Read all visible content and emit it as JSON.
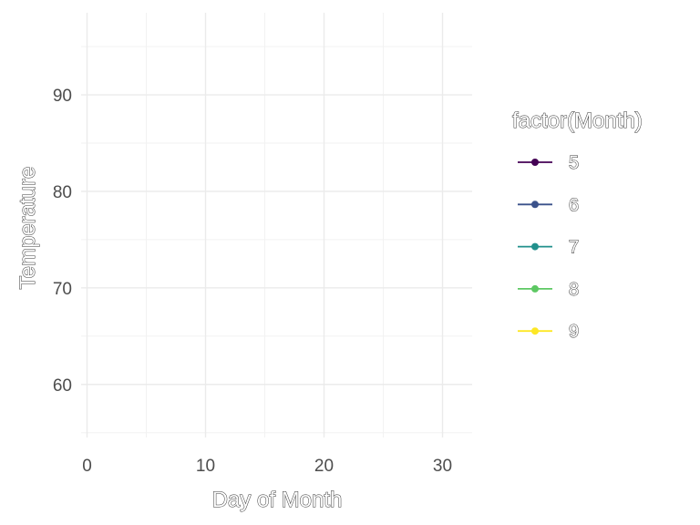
{
  "chart_data": {
    "type": "line",
    "title": "",
    "xlabel": "Day of Month",
    "ylabel": "Temperature",
    "xlim": [
      -0.5,
      32.5
    ],
    "ylim": [
      54.5,
      98.5
    ],
    "x_ticks": [
      0,
      10,
      20,
      30
    ],
    "y_ticks": [
      60,
      70,
      80,
      90
    ],
    "grid": true,
    "legend_position": "right",
    "legend_title": "factor(Month)",
    "series": [
      {
        "name": "5",
        "color": "#440154",
        "values": []
      },
      {
        "name": "6",
        "color": "#3B528B",
        "values": []
      },
      {
        "name": "7",
        "color": "#21908C",
        "values": []
      },
      {
        "name": "8",
        "color": "#5DC863",
        "values": []
      },
      {
        "name": "9",
        "color": "#FDE725",
        "values": []
      }
    ]
  }
}
